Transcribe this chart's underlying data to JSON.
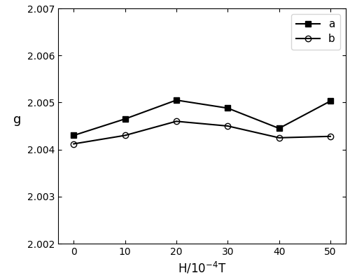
{
  "x": [
    0,
    10,
    20,
    30,
    40,
    50
  ],
  "series_a": [
    2.0043,
    2.00465,
    2.00505,
    2.00488,
    2.00445,
    2.00503
  ],
  "series_b": [
    2.00412,
    2.0043,
    2.0046,
    2.0045,
    2.00425,
    2.00428
  ],
  "label_a": "a",
  "label_b": "b",
  "xlabel": "H/10$^{-4}$T",
  "ylabel": "g",
  "ylim": [
    2.002,
    2.007
  ],
  "yticks": [
    2.002,
    2.003,
    2.004,
    2.005,
    2.006,
    2.007
  ],
  "xticks": [
    0,
    10,
    20,
    30,
    40,
    50
  ],
  "color_a": "#000000",
  "color_b": "#000000",
  "marker_a": "s",
  "marker_b": "o",
  "linewidth": 1.5,
  "markersize_a": 6,
  "markersize_b": 6,
  "fillstyle_a": "full",
  "fillstyle_b": "none",
  "xlim": [
    -3,
    53
  ]
}
